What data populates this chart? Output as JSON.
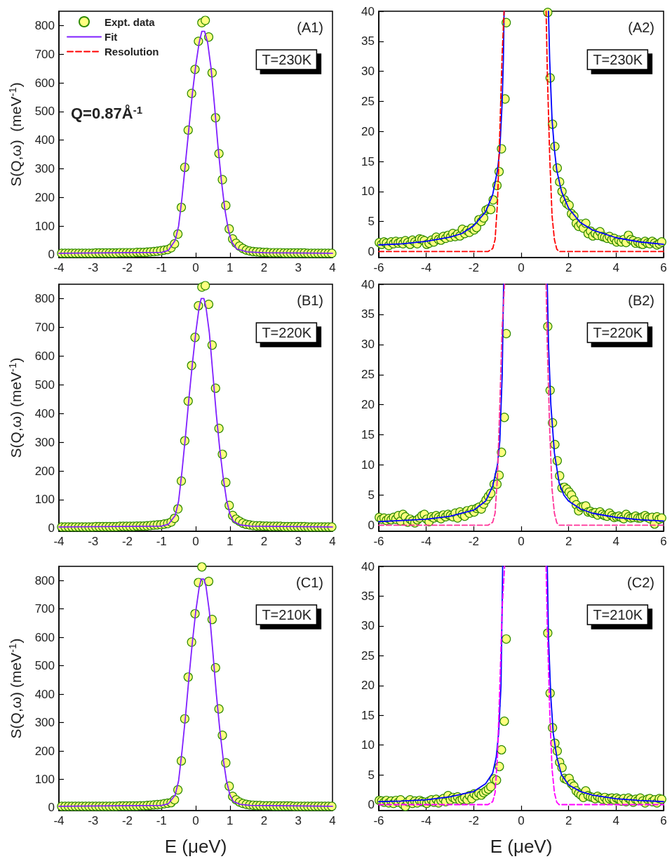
{
  "chart_data": [
    {
      "type": "scatter",
      "ylabel": "S(Q,ω)  (meV$^{-1}$)",
      "xlim": [
        -4,
        4
      ],
      "xticks": [
        -4,
        -3,
        -2,
        -1,
        0,
        1,
        2,
        3,
        4
      ],
      "ylim": [
        -10,
        850
      ],
      "yticks": [
        0,
        100,
        200,
        300,
        400,
        500,
        600,
        700,
        800
      ],
      "grid": false,
      "legend": "top left",
      "annotations": [
        "(A1)",
        "T=230K",
        "Q=0.87Å$^{-1}$"
      ],
      "series": [
        {
          "name": "Expt. data",
          "marker": "circle",
          "color": "#ffff80",
          "x": [
            -3.92,
            -3.82,
            -3.72,
            -3.62,
            -3.52,
            -3.42,
            -3.32,
            -3.22,
            -3.12,
            -3.02,
            -2.92,
            -2.82,
            -2.72,
            -2.62,
            -2.52,
            -2.42,
            -2.32,
            -2.22,
            -2.12,
            -2.02,
            -1.92,
            -1.82,
            -1.72,
            -1.62,
            -1.52,
            -1.42,
            -1.32,
            -1.22,
            -1.12,
            -1.02,
            -0.92,
            -0.82,
            -0.72,
            -0.62,
            -0.52,
            -0.42,
            -0.32,
            -0.22,
            -0.12,
            -0.02,
            0.08,
            0.18,
            0.28,
            0.38,
            0.48,
            0.58,
            0.68,
            0.78,
            0.88,
            0.98,
            1.08,
            1.18,
            1.28,
            1.38,
            1.48,
            1.58,
            1.68,
            1.78,
            1.88,
            1.98,
            2.08,
            2.18,
            2.28,
            2.38,
            2.48,
            2.58,
            2.68,
            2.78,
            2.88,
            2.98,
            3.08,
            3.18,
            3.28,
            3.38,
            3.48,
            3.58,
            3.68,
            3.78,
            3.88,
            3.98
          ],
          "values": [
            5,
            5,
            5,
            5,
            5,
            5,
            5,
            5,
            5,
            5,
            6,
            6,
            6,
            6,
            6,
            6,
            6,
            7,
            7,
            7,
            7,
            7,
            8,
            8,
            8,
            9,
            10,
            11,
            12,
            14,
            16,
            18,
            24,
            38,
            72,
            165,
            305,
            435,
            563,
            647,
            745,
            810,
            818,
            760,
            635,
            478,
            353,
            262,
            172,
            90,
            55,
            40,
            30,
            22,
            16,
            13,
            11,
            10,
            9,
            8,
            8,
            7,
            7,
            7,
            7,
            6,
            6,
            6,
            6,
            6,
            6,
            6,
            5,
            5,
            5,
            5,
            5,
            5,
            5,
            5
          ]
        },
        {
          "name": "Fit",
          "type": "line",
          "color": "#8020ff",
          "line_style": "solid",
          "x": [
            -4,
            -1,
            -0.8,
            -0.6,
            -0.5,
            -0.4,
            -0.3,
            -0.2,
            -0.1,
            0,
            0.1,
            0.18,
            0.26,
            0.35,
            0.45,
            0.55,
            0.65,
            0.75,
            0.85,
            0.95,
            1.05,
            1.2,
            1.5,
            2,
            4
          ],
          "values": [
            5,
            8,
            15,
            50,
            100,
            200,
            320,
            440,
            560,
            660,
            740,
            780,
            780,
            740,
            650,
            520,
            380,
            260,
            160,
            90,
            45,
            20,
            10,
            7,
            5
          ]
        },
        {
          "name": "Resolution",
          "type": "line",
          "color": "#ff0000",
          "line_style": "dashed"
        }
      ]
    },
    {
      "type": "scatter",
      "xlim": [
        -6,
        6
      ],
      "xticks": [
        -6,
        -4,
        -2,
        0,
        2,
        4,
        6
      ],
      "ylim": [
        -1,
        40
      ],
      "yticks": [
        0,
        5,
        10,
        15,
        20,
        25,
        30,
        35,
        40
      ],
      "grid": false,
      "annotations": [
        "(A2)",
        "T=230K"
      ],
      "series": [
        {
          "marker": "circle",
          "color": "#ffff80",
          "x": [
            -5.98,
            -5.88,
            -5.78,
            -5.68,
            -5.58,
            -5.48,
            -5.38,
            -5.28,
            -5.18,
            -5.08,
            -4.98,
            -4.88,
            -4.78,
            -4.68,
            -4.58,
            -4.48,
            -4.38,
            -4.28,
            -4.18,
            -4.08,
            -3.98,
            -3.88,
            -3.78,
            -3.68,
            -3.58,
            -3.48,
            -3.38,
            -3.28,
            -3.18,
            -3.08,
            -2.98,
            -2.88,
            -2.78,
            -2.68,
            -2.58,
            -2.48,
            -2.38,
            -2.28,
            -2.18,
            -2.08,
            -1.98,
            -1.88,
            -1.78,
            -1.68,
            -1.58,
            -1.48,
            -1.38,
            -1.28,
            -1.18,
            -1.02,
            -0.93,
            -0.83,
            -0.68,
            -0.63,
            1.12,
            1.22,
            1.32,
            1.42,
            1.52,
            1.62,
            1.72,
            1.82,
            1.92,
            2.02,
            2.12,
            2.22,
            2.32,
            2.42,
            2.52,
            2.62,
            2.72,
            2.82,
            2.92,
            3.02,
            3.12,
            3.22,
            3.32,
            3.42,
            3.52,
            3.62,
            3.72,
            3.82,
            3.92,
            4.02,
            4.12,
            4.22,
            4.32,
            4.42,
            4.52,
            4.62,
            4.72,
            4.82,
            4.92,
            5.02,
            5.12,
            5.22,
            5.32,
            5.42,
            5.52,
            5.62,
            5.72,
            5.82,
            5.92
          ],
          "values": [
            1.5,
            1.2,
            1.6,
            1.4,
            1.0,
            1.6,
            1.3,
            1.7,
            1.4,
            1.6,
            1.3,
            1.8,
            1.5,
            1.2,
            1.9,
            1.6,
            1.3,
            2.1,
            2.0,
            1.8,
            1.2,
            1.4,
            1.9,
            1.6,
            2.4,
            2.0,
            1.9,
            2.5,
            2.2,
            2.7,
            2.4,
            3.0,
            2.5,
            2.9,
            2.6,
            3.7,
            3.0,
            3.5,
            3.2,
            3.9,
            3.6,
            4.0,
            5.3,
            5.0,
            5.6,
            6.9,
            7.1,
            7.0,
            8.6,
            11.0,
            13.3,
            17.1,
            25.4,
            38.1,
            39.8,
            28.9,
            21.2,
            17.5,
            13.9,
            11.6,
            10.0,
            8.6,
            8.0,
            7.7,
            6.3,
            5.9,
            4.7,
            4.2,
            4.6,
            3.9,
            4.7,
            3.0,
            3.4,
            2.6,
            3.0,
            2.7,
            3.3,
            2.5,
            2.4,
            2.2,
            2.5,
            2.0,
            2.2,
            1.6,
            1.9,
            1.6,
            2.0,
            1.5,
            2.7,
            2.0,
            1.8,
            1.4,
            1.6,
            1.3,
            1.2,
            1.7,
            1.4,
            1.3,
            1.7,
            1.4,
            1.1,
            1.3,
            1.6
          ]
        },
        {
          "type": "line",
          "color": "#0000ff",
          "line_style": "solid",
          "x": [
            -6,
            -5,
            -4,
            -3,
            -2.5,
            -2,
            -1.5,
            -1.2,
            -1,
            -0.9,
            -0.8,
            -0.75,
            -0.72,
            0,
            1.15,
            1.2,
            1.3,
            1.4,
            1.5,
            1.7,
            2,
            2.5,
            3,
            4,
            5,
            6
          ],
          "values": [
            1.1,
            1.3,
            1.7,
            2.4,
            3.0,
            4.3,
            6.6,
            9.5,
            13.5,
            17,
            25,
            32,
            40,
            null,
            40,
            32,
            22,
            17,
            13.5,
            10,
            7.2,
            4.8,
            3.6,
            2.3,
            1.6,
            1.2
          ]
        },
        {
          "type": "line",
          "color": "#ff0000",
          "line_style": "dashed",
          "x": [
            -6,
            -1.4,
            -1.2,
            -1.1,
            -1,
            -0.9,
            -0.8,
            -0.72,
            0,
            1.05,
            1.1,
            1.2,
            1.3,
            1.4,
            1.5,
            1.6,
            6
          ],
          "values": [
            0,
            0,
            0.5,
            2,
            8,
            20,
            33,
            40,
            null,
            40,
            30,
            16,
            6,
            2,
            0.4,
            0,
            0
          ]
        }
      ]
    },
    {
      "type": "scatter",
      "ylabel": "S(Q,ω) (meV$^{-1}$)",
      "xlim": [
        -4,
        4
      ],
      "xticks": [
        -4,
        -3,
        -2,
        -1,
        0,
        1,
        2,
        3,
        4
      ],
      "ylim": [
        -10,
        850
      ],
      "yticks": [
        0,
        100,
        200,
        300,
        400,
        500,
        600,
        700,
        800
      ],
      "grid": false,
      "annotations": [
        "(B1)",
        "T=220K"
      ],
      "series": [
        {
          "marker": "circle",
          "color": "#ffff80",
          "x": [
            -3.92,
            -3.82,
            -3.72,
            -3.62,
            -3.52,
            -3.42,
            -3.32,
            -3.22,
            -3.12,
            -3.02,
            -2.92,
            -2.82,
            -2.72,
            -2.62,
            -2.52,
            -2.42,
            -2.32,
            -2.22,
            -2.12,
            -2.02,
            -1.92,
            -1.82,
            -1.72,
            -1.62,
            -1.52,
            -1.42,
            -1.32,
            -1.22,
            -1.12,
            -1.02,
            -0.92,
            -0.82,
            -0.72,
            -0.62,
            -0.52,
            -0.42,
            -0.32,
            -0.22,
            -0.12,
            -0.02,
            0.08,
            0.18,
            0.28,
            0.38,
            0.48,
            0.58,
            0.68,
            0.78,
            0.88,
            0.98,
            1.08,
            1.18,
            1.28,
            1.38,
            1.48,
            1.58,
            1.68,
            1.78,
            1.88,
            1.98,
            2.08,
            2.18,
            2.28,
            2.38,
            2.48,
            2.58,
            2.68,
            2.78,
            2.88,
            2.98,
            3.08,
            3.18,
            3.28,
            3.38,
            3.48,
            3.58,
            3.68,
            3.78,
            3.88,
            3.98
          ],
          "values": [
            5,
            5,
            5,
            5,
            5,
            5,
            5,
            5,
            5,
            5,
            6,
            6,
            6,
            6,
            6,
            6,
            6,
            7,
            7,
            7,
            7,
            7,
            8,
            8,
            8,
            9,
            10,
            11,
            12,
            13,
            15,
            17,
            22,
            35,
            68,
            165,
            305,
            443,
            567,
            665,
            775,
            840,
            845,
            780,
            638,
            488,
            348,
            258,
            160,
            80,
            45,
            32,
            25,
            18,
            14,
            12,
            10,
            9,
            9,
            8,
            8,
            7,
            7,
            7,
            7,
            6,
            6,
            6,
            6,
            6,
            6,
            6,
            5,
            5,
            5,
            5,
            5,
            5,
            5,
            5
          ]
        },
        {
          "type": "line",
          "color": "#8020ff",
          "line_style": "solid",
          "x": [
            -4,
            -1,
            -0.8,
            -0.6,
            -0.5,
            -0.4,
            -0.3,
            -0.2,
            -0.1,
            0,
            0.1,
            0.16,
            0.24,
            0.3,
            0.4,
            0.5,
            0.6,
            0.7,
            0.8,
            0.9,
            1,
            1.1,
            1.3,
            1.6,
            4
          ],
          "values": [
            5,
            8,
            14,
            45,
            95,
            200,
            320,
            450,
            570,
            680,
            770,
            800,
            800,
            770,
            680,
            540,
            400,
            280,
            180,
            100,
            50,
            25,
            12,
            8,
            5
          ]
        }
      ]
    },
    {
      "type": "scatter",
      "xlim": [
        -6,
        6
      ],
      "xticks": [
        -6,
        -4,
        -2,
        0,
        2,
        4,
        6
      ],
      "ylim": [
        -1,
        40
      ],
      "yticks": [
        0,
        5,
        10,
        15,
        20,
        25,
        30,
        35,
        40
      ],
      "grid": false,
      "annotations": [
        "(B2)",
        "T=220K"
      ],
      "series": [
        {
          "marker": "circle",
          "color": "#ffff80",
          "x": [
            -5.98,
            -5.88,
            -5.78,
            -5.68,
            -5.58,
            -5.48,
            -5.38,
            -5.28,
            -5.18,
            -5.08,
            -4.98,
            -4.88,
            -4.78,
            -4.68,
            -4.58,
            -4.48,
            -4.38,
            -4.28,
            -4.18,
            -4.08,
            -3.98,
            -3.88,
            -3.78,
            -3.68,
            -3.58,
            -3.48,
            -3.38,
            -3.28,
            -3.18,
            -3.08,
            -2.98,
            -2.88,
            -2.78,
            -2.68,
            -2.58,
            -2.48,
            -2.38,
            -2.28,
            -2.18,
            -2.08,
            -1.98,
            -1.88,
            -1.78,
            -1.68,
            -1.58,
            -1.48,
            -1.38,
            -1.28,
            -1.14,
            -1.02,
            -0.93,
            -0.83,
            -0.71,
            -0.63,
            1.12,
            1.22,
            1.32,
            1.42,
            1.52,
            1.62,
            1.72,
            1.82,
            1.92,
            2.02,
            2.12,
            2.22,
            2.32,
            2.42,
            2.52,
            2.62,
            2.72,
            2.82,
            2.92,
            3.02,
            3.12,
            3.22,
            3.32,
            3.42,
            3.52,
            3.62,
            3.72,
            3.82,
            3.92,
            4.02,
            4.12,
            4.22,
            4.32,
            4.42,
            4.52,
            4.62,
            4.72,
            4.82,
            4.92,
            5.02,
            5.12,
            5.22,
            5.32,
            5.42,
            5.52,
            5.62,
            5.72,
            5.82,
            5.92
          ],
          "values": [
            1.3,
            1.0,
            1.2,
            0.8,
            1.1,
            0.9,
            1.3,
            1.0,
            1.6,
            0.7,
            1.8,
            1.4,
            0.5,
            1.0,
            0.7,
            0.4,
            0.9,
            1.2,
            1.6,
            1.8,
            1.0,
            0.6,
            1.4,
            1.2,
            1.6,
            1.3,
            1.1,
            1.7,
            1.4,
            1.8,
            1.6,
            1.4,
            2.0,
            1.2,
            2.2,
            1.8,
            1.5,
            2.4,
            2.0,
            2.6,
            2.2,
            2.8,
            3.0,
            2.7,
            3.5,
            4.2,
            4.8,
            5.3,
            6.8,
            6.8,
            8.3,
            12.1,
            17.9,
            31.8,
            33.0,
            22.4,
            17.0,
            13.4,
            10.7,
            8.2,
            6.2,
            6.3,
            6.0,
            5.5,
            5.0,
            4.2,
            3.4,
            2.4,
            3.0,
            3.1,
            3.2,
            2.2,
            2.3,
            2.0,
            2.1,
            1.7,
            2.2,
            1.8,
            1.6,
            1.5,
            2.0,
            1.6,
            1.3,
            1.4,
            1.5,
            1.3,
            1.1,
            1.8,
            1.4,
            1.2,
            1.3,
            1.5,
            1.2,
            1.2,
            1.4,
            1.6,
            1.3,
            1.1,
            1.3,
            0.2,
            1.4,
            1.0,
            1.2
          ]
        },
        {
          "type": "line",
          "color": "#0000ff",
          "line_style": "solid",
          "x": [
            -6,
            -5,
            -4,
            -3,
            -2,
            -1.5,
            -1.2,
            -1,
            -0.9,
            -0.8,
            -0.74,
            0,
            1.1,
            1.15,
            1.25,
            1.4,
            1.6,
            1.8,
            2,
            2.5,
            3,
            4,
            5,
            6
          ],
          "values": [
            0.6,
            0.8,
            1.0,
            1.5,
            2.5,
            4,
            6.5,
            10,
            14,
            25,
            40,
            null,
            40,
            30,
            20,
            12,
            7,
            5,
            4,
            2.7,
            2.0,
            1.3,
            0.9,
            0.7
          ]
        },
        {
          "type": "line",
          "color": "#ff3399",
          "line_style": "dashed",
          "x": [
            -6,
            -1.4,
            -1.2,
            -1.1,
            -1,
            -0.9,
            -0.8,
            -0.7,
            0,
            1.05,
            1.1,
            1.2,
            1.3,
            1.4,
            1.5,
            1.6,
            6
          ],
          "values": [
            0,
            0,
            0.5,
            2,
            8,
            20,
            33,
            40,
            null,
            40,
            30,
            16,
            6,
            2,
            0.4,
            0,
            0
          ]
        }
      ]
    },
    {
      "type": "scatter",
      "ylabel": "S(Q,ω) (meV$^{-1}$)",
      "xlabel": "E (μeV)",
      "xlim": [
        -4,
        4
      ],
      "xticks": [
        -4,
        -3,
        -2,
        -1,
        0,
        1,
        2,
        3,
        4
      ],
      "ylim": [
        -10,
        850
      ],
      "yticks": [
        0,
        100,
        200,
        300,
        400,
        500,
        600,
        700,
        800
      ],
      "grid": false,
      "annotations": [
        "(C1)",
        "T=210K"
      ],
      "series": [
        {
          "marker": "circle",
          "color": "#ffff80",
          "x": [
            -3.92,
            -3.82,
            -3.72,
            -3.62,
            -3.52,
            -3.42,
            -3.32,
            -3.22,
            -3.12,
            -3.02,
            -2.92,
            -2.82,
            -2.72,
            -2.62,
            -2.52,
            -2.42,
            -2.32,
            -2.22,
            -2.12,
            -2.02,
            -1.92,
            -1.82,
            -1.72,
            -1.62,
            -1.52,
            -1.42,
            -1.32,
            -1.22,
            -1.12,
            -1.02,
            -0.92,
            -0.82,
            -0.72,
            -0.62,
            -0.52,
            -0.42,
            -0.32,
            -0.22,
            -0.12,
            -0.02,
            0.08,
            0.18,
            0.28,
            0.38,
            0.48,
            0.58,
            0.68,
            0.78,
            0.88,
            0.98,
            1.08,
            1.18,
            1.28,
            1.38,
            1.48,
            1.58,
            1.68,
            1.78,
            1.88,
            1.98,
            2.08,
            2.18,
            2.28,
            2.38,
            2.48,
            2.58,
            2.68,
            2.78,
            2.88,
            2.98,
            3.08,
            3.18,
            3.28,
            3.38,
            3.48,
            3.58,
            3.68,
            3.78,
            3.88,
            3.98
          ],
          "values": [
            5,
            5,
            5,
            5,
            5,
            5,
            5,
            5,
            5,
            5,
            5,
            5,
            5,
            5,
            5,
            5,
            5,
            6,
            6,
            6,
            6,
            6,
            6,
            7,
            7,
            8,
            9,
            10,
            11,
            12,
            14,
            16,
            18,
            28,
            63,
            165,
            313,
            460,
            583,
            683,
            793,
            848,
            null,
            797,
            663,
            493,
            348,
            255,
            158,
            76,
            40,
            28,
            20,
            15,
            12,
            10,
            9,
            8,
            8,
            7,
            7,
            7,
            6,
            6,
            6,
            6,
            6,
            6,
            5,
            5,
            5,
            5,
            5,
            5,
            5,
            5,
            5,
            5,
            5,
            5
          ]
        },
        {
          "type": "line",
          "color": "#8020ff",
          "line_style": "solid",
          "x": [
            -4,
            -1,
            -0.8,
            -0.6,
            -0.5,
            -0.4,
            -0.3,
            -0.2,
            -0.1,
            0,
            0.1,
            0.16,
            0.24,
            0.3,
            0.4,
            0.5,
            0.6,
            0.7,
            0.8,
            0.9,
            1,
            1.1,
            1.3,
            1.6,
            4
          ],
          "values": [
            5,
            8,
            14,
            45,
            95,
            200,
            320,
            455,
            580,
            690,
            775,
            805,
            805,
            780,
            690,
            550,
            405,
            280,
            175,
            95,
            45,
            22,
            12,
            8,
            5
          ]
        }
      ]
    },
    {
      "type": "scatter",
      "xlabel": "E (μeV)",
      "xlim": [
        -6,
        6
      ],
      "xticks": [
        -6,
        -4,
        -2,
        0,
        2,
        4,
        6
      ],
      "ylim": [
        -1,
        40
      ],
      "yticks": [
        0,
        5,
        10,
        15,
        20,
        25,
        30,
        35,
        40
      ],
      "grid": false,
      "annotations": [
        "(C2)",
        "T=210K"
      ],
      "series": [
        {
          "marker": "circle",
          "color": "#ffff80",
          "x": [
            -5.98,
            -5.88,
            -5.78,
            -5.68,
            -5.58,
            -5.48,
            -5.38,
            -5.28,
            -5.18,
            -5.08,
            -4.98,
            -4.88,
            -4.78,
            -4.68,
            -4.58,
            -4.48,
            -4.38,
            -4.28,
            -4.18,
            -4.08,
            -3.98,
            -3.88,
            -3.78,
            -3.68,
            -3.58,
            -3.48,
            -3.38,
            -3.28,
            -3.18,
            -3.08,
            -2.98,
            -2.88,
            -2.78,
            -2.68,
            -2.58,
            -2.48,
            -2.38,
            -2.28,
            -2.18,
            -2.08,
            -1.98,
            -1.88,
            -1.78,
            -1.68,
            -1.58,
            -1.48,
            -1.38,
            -1.28,
            -1.14,
            -1.04,
            -0.92,
            -0.83,
            -0.71,
            -0.63,
            1.12,
            1.22,
            1.32,
            1.42,
            1.52,
            1.62,
            1.72,
            1.82,
            1.92,
            2.02,
            2.12,
            2.22,
            2.32,
            2.42,
            2.52,
            2.62,
            2.72,
            2.82,
            2.92,
            3.02,
            3.12,
            3.22,
            3.32,
            3.42,
            3.52,
            3.62,
            3.72,
            3.82,
            3.92,
            4.02,
            4.12,
            4.22,
            4.32,
            4.42,
            4.52,
            4.62,
            4.72,
            4.82,
            4.92,
            5.02,
            5.12,
            5.22,
            5.32,
            5.42,
            5.52,
            5.62,
            5.72,
            5.82,
            5.92
          ],
          "values": [
            0.7,
            0.6,
            0.4,
            0.7,
            0.3,
            0.6,
            0.2,
            0.7,
            0.4,
            0.8,
            0.0,
            -0.3,
            0.5,
            0.8,
            0.2,
            0.6,
            0.3,
            0.7,
            0.5,
            0.4,
            0.2,
            0.6,
            0.8,
            0.4,
            0.9,
            0.3,
            0.7,
            1.0,
            0.5,
            1.5,
            0.8,
            1.2,
            1.0,
            1.3,
            0.7,
            0.9,
            1.2,
            0.8,
            1.5,
            1.0,
            1.8,
            1.5,
            1.9,
            1.6,
            2.0,
            2.3,
            2.6,
            3.0,
            4.3,
            4.1,
            6.4,
            9.2,
            14.0,
            27.8,
            28.8,
            18.7,
            12.9,
            10.3,
            9.0,
            7.1,
            6.2,
            4.4,
            4.2,
            4.4,
            3.5,
            3.1,
            2.3,
            1.9,
            1.6,
            1.2,
            2.3,
            1.5,
            1.3,
            1.2,
            1.0,
            1.4,
            1.1,
            0.9,
            1.2,
            0.7,
            1.0,
            1.1,
            0.8,
            1.1,
            0.9,
            0.6,
            1.0,
            0.5,
            1.1,
            0.8,
            0.4,
            0.9,
            0.7,
            1.1,
            0.6,
            0.3,
            0.9,
            1.0,
            0.5,
            0.8,
            0.3,
            1.0,
            0.9
          ]
        },
        {
          "type": "line",
          "color": "#0000ff",
          "line_style": "solid",
          "x": [
            -6,
            -5,
            -4,
            -3,
            -2,
            -1.5,
            -1.2,
            -1.05,
            -0.95,
            -0.85,
            -0.78,
            0,
            1.1,
            1.15,
            1.25,
            1.35,
            1.5,
            1.7,
            2,
            2.5,
            3,
            4,
            5,
            6
          ],
          "values": [
            0.5,
            0.6,
            0.8,
            1.3,
            2.2,
            3.5,
            5.3,
            8,
            12,
            20,
            40,
            null,
            40,
            28,
            18,
            12,
            8,
            5,
            3.3,
            2.2,
            1.6,
            1.0,
            0.7,
            0.5
          ]
        },
        {
          "type": "line",
          "color": "#ff00ff",
          "line_style": "dashed",
          "x": [
            -6,
            -1.4,
            -1.2,
            -1.1,
            -1,
            -0.9,
            -0.8,
            -0.7,
            0,
            1.05,
            1.1,
            1.2,
            1.3,
            1.4,
            1.5,
            1.6,
            6
          ],
          "values": [
            0,
            0,
            0.5,
            2,
            8,
            20,
            33,
            40,
            null,
            40,
            30,
            16,
            6,
            2,
            0.4,
            0,
            0
          ]
        }
      ]
    }
  ]
}
